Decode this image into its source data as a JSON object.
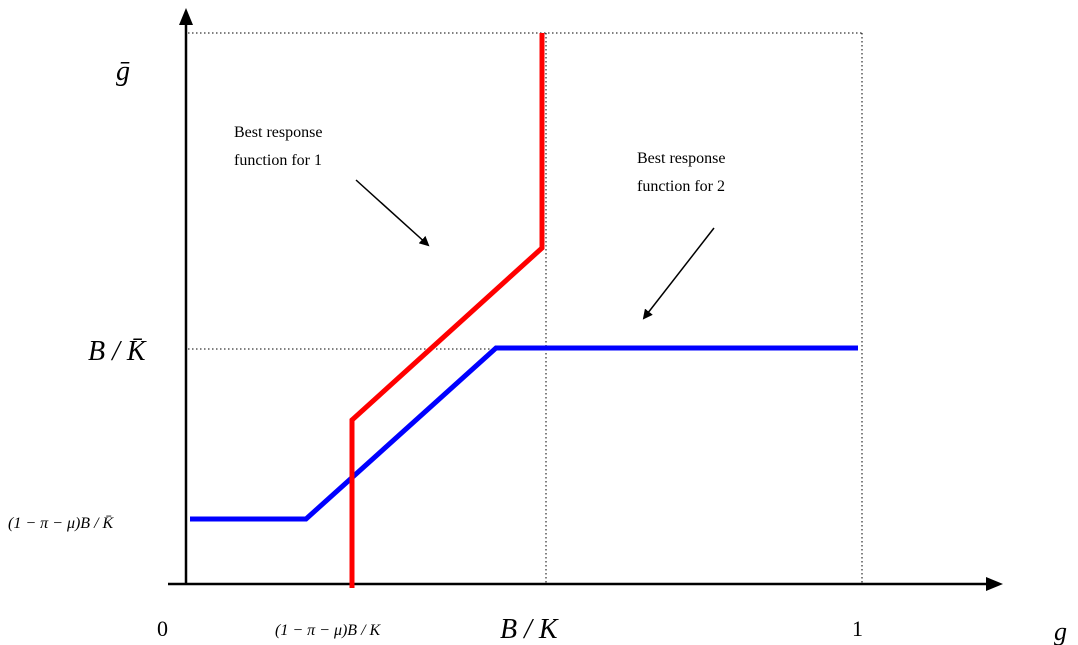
{
  "axes": {
    "x_label": "g",
    "y_label": "ḡ"
  },
  "ticks": {
    "x": [
      {
        "label": "0"
      },
      {
        "label": "(1 − π − μ)B / K"
      },
      {
        "label": "B / K"
      },
      {
        "label": "1"
      }
    ],
    "y": [
      {
        "label": "B / K̄"
      },
      {
        "label": "(1 − π − μ)B / K̄"
      }
    ]
  },
  "annotations": {
    "player1": {
      "line1": "Best response",
      "line2": "function for 1"
    },
    "player2": {
      "line1": "Best response",
      "line2": "function for 2"
    }
  },
  "colors": {
    "player1": "#ff0000",
    "player2": "#0000ff",
    "axis": "#000000",
    "guide": "#000000"
  }
}
